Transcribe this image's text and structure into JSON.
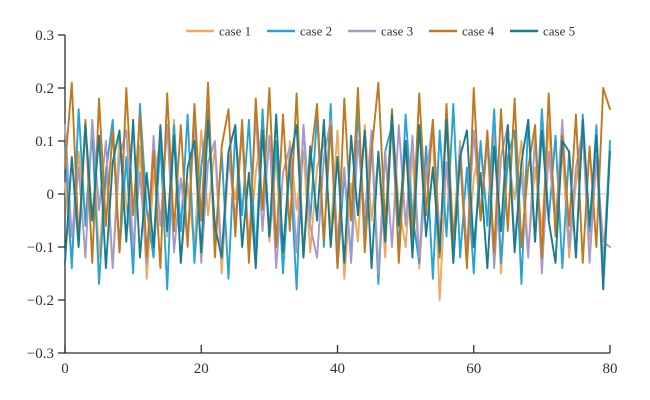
{
  "figure": {
    "background": "#ffffff",
    "axis_color": "#2f2f2f",
    "zero_line_color": "#b3b3b3",
    "text_color": "#333333"
  },
  "chart_data": {
    "type": "line",
    "title": "",
    "xlabel": "",
    "ylabel": "",
    "xlim": [
      0,
      80
    ],
    "ylim": [
      -0.3,
      0.3
    ],
    "grid": false,
    "zero_line": true,
    "legend_position": "top",
    "xticks": {
      "values": [
        0,
        20,
        40,
        60,
        80
      ],
      "labels": [
        "0",
        "20",
        "40",
        "60",
        "80"
      ]
    },
    "yticks": {
      "values": [
        0.3,
        0.2,
        0.1,
        0,
        -0.1,
        -0.2,
        -0.3
      ],
      "labels": [
        "0.3",
        "0.2",
        "0.1",
        "0",
        "−0.1",
        "−0.2",
        "−0.3"
      ]
    },
    "x_step": 1,
    "series": [
      {
        "name": "case 1",
        "color": "#EFA95C",
        "values": [
          0.02,
          -0.13,
          0.08,
          -0.05,
          0.13,
          -0.12,
          0.05,
          -0.14,
          0.11,
          -0.02,
          -0.11,
          0.09,
          -0.16,
          0.03,
          0.1,
          -0.08,
          0.14,
          -0.13,
          0.02,
          -0.1,
          0.12,
          -0.04,
          0.09,
          -0.15,
          0.06,
          -0.01,
          0.11,
          -0.12,
          0.04,
          0.13,
          -0.09,
          0.07,
          -0.14,
          0.1,
          -0.03,
          0.08,
          -0.11,
          0.05,
          0.1,
          -0.07,
          0.12,
          -0.16,
          0.02,
          -0.09,
          0.13,
          -0.05,
          0.07,
          -0.12,
          0.15,
          -0.02,
          -0.1,
          0.08,
          -0.14,
          0.04,
          0.11,
          -0.2,
          0.06,
          -0.08,
          0.1,
          -0.13,
          0.03,
          0.09,
          -0.05,
          0.12,
          -0.15,
          0.07,
          -0.01,
          0.1,
          -0.11,
          0.05,
          -0.07,
          0.13,
          -0.04,
          0.08,
          -0.12,
          0.02,
          0.11,
          -0.09,
          0.06,
          -0.13,
          0.09
        ]
      },
      {
        "name": "case 2",
        "color": "#29A3D4",
        "values": [
          0.09,
          -0.14,
          0.16,
          -0.06,
          0.12,
          -0.17,
          0.04,
          0.14,
          -0.11,
          0.07,
          -0.15,
          0.17,
          -0.03,
          -0.12,
          0.1,
          -0.18,
          0.13,
          -0.07,
          0.15,
          -0.13,
          0.05,
          0.16,
          -0.1,
          0.08,
          -0.16,
          0.12,
          -0.04,
          0.14,
          -0.12,
          0.16,
          -0.08,
          0.1,
          -0.15,
          0.06,
          -0.18,
          0.13,
          -0.05,
          0.15,
          -0.1,
          0.17,
          -0.14,
          0.04,
          -0.12,
          0.16,
          -0.07,
          0.11,
          -0.17,
          0.08,
          0.13,
          -0.11,
          0.15,
          -0.04,
          -0.13,
          0.09,
          -0.16,
          0.12,
          -0.08,
          0.17,
          -0.12,
          0.05,
          -0.15,
          0.1,
          -0.06,
          0.16,
          -0.13,
          0.07,
          0.12,
          -0.17,
          0.14,
          -0.09,
          0.16,
          -0.05,
          0.11,
          -0.14,
          0.08,
          -0.12,
          0.15,
          -0.07,
          0.13,
          -0.16,
          0.1
        ]
      },
      {
        "name": "case 3",
        "color": "#A79AC9",
        "values": [
          0.13,
          -0.08,
          0.05,
          -0.12,
          0.14,
          -0.03,
          0.1,
          -0.14,
          0.07,
          0.12,
          -0.1,
          0.04,
          -0.13,
          0.11,
          -0.06,
          0.13,
          -0.11,
          0.03,
          -0.09,
          0.14,
          -0.13,
          0.06,
          0.1,
          -0.12,
          0.08,
          -0.05,
          0.13,
          -0.1,
          0.15,
          -0.07,
          0.11,
          -0.14,
          0.04,
          0.09,
          -0.11,
          0.13,
          -0.06,
          -0.12,
          0.07,
          0.14,
          -0.09,
          0.05,
          -0.13,
          0.1,
          -0.04,
          0.12,
          -0.15,
          0.08,
          -0.1,
          0.13,
          -0.06,
          0.11,
          -0.12,
          0.03,
          0.14,
          -0.08,
          0.06,
          -0.13,
          0.09,
          -0.11,
          0.12,
          -0.05,
          0.1,
          -0.14,
          0.07,
          0.13,
          -0.09,
          0.04,
          -0.12,
          0.11,
          -0.15,
          0.08,
          -0.06,
          0.14,
          -0.1,
          0.05,
          0.12,
          -0.13,
          0.07,
          -0.09,
          -0.1
        ]
      },
      {
        "name": "case 4",
        "color": "#C0791F",
        "values": [
          0.05,
          0.21,
          -0.09,
          0.14,
          -0.13,
          0.18,
          -0.06,
          0.12,
          -0.11,
          0.2,
          -0.04,
          0.15,
          -0.12,
          0.08,
          -0.14,
          0.19,
          -0.07,
          0.13,
          -0.1,
          0.17,
          -0.05,
          0.21,
          -0.12,
          0.09,
          0.16,
          -0.08,
          0.14,
          -0.13,
          0.18,
          -0.03,
          0.2,
          -0.1,
          0.15,
          -0.07,
          0.19,
          -0.12,
          0.06,
          0.17,
          -0.09,
          0.13,
          -0.14,
          0.18,
          -0.05,
          0.2,
          -0.11,
          0.08,
          0.21,
          -0.06,
          0.16,
          -0.13,
          0.1,
          -0.08,
          0.19,
          -0.04,
          0.14,
          -0.12,
          0.17,
          -0.09,
          0.07,
          -0.14,
          0.2,
          -0.05,
          0.12,
          -0.11,
          0.16,
          -0.07,
          0.18,
          -0.1,
          0.05,
          0.13,
          -0.12,
          0.19,
          -0.08,
          0.11,
          -0.06,
          0.15,
          -0.13,
          0.09,
          -0.1,
          0.2,
          0.16
        ]
      },
      {
        "name": "case 5",
        "color": "#1A7C8E",
        "values": [
          -0.13,
          0.07,
          -0.1,
          0.13,
          -0.05,
          0.11,
          -0.14,
          0.06,
          0.12,
          -0.09,
          0.14,
          -0.12,
          0.04,
          -0.1,
          0.13,
          -0.07,
          0.11,
          -0.13,
          0.05,
          0.1,
          -0.11,
          0.14,
          -0.06,
          -0.12,
          0.08,
          0.13,
          -0.1,
          0.04,
          -0.14,
          0.12,
          -0.08,
          0.15,
          -0.11,
          0.06,
          0.13,
          -0.12,
          0.09,
          -0.05,
          0.14,
          -0.1,
          0.07,
          -0.13,
          0.11,
          -0.04,
          0.12,
          -0.14,
          0.08,
          -0.09,
          0.15,
          -0.06,
          0.1,
          -0.12,
          0.13,
          -0.08,
          0.05,
          -0.11,
          0.14,
          -0.13,
          0.07,
          0.12,
          -0.1,
          0.04,
          -0.14,
          0.09,
          -0.07,
          0.13,
          -0.11,
          0.06,
          0.14,
          -0.09,
          0.12,
          -0.05,
          -0.13,
          0.1,
          0.08,
          -0.12,
          0.14,
          -0.06,
          0.11,
          -0.18,
          0.08
        ]
      }
    ]
  }
}
